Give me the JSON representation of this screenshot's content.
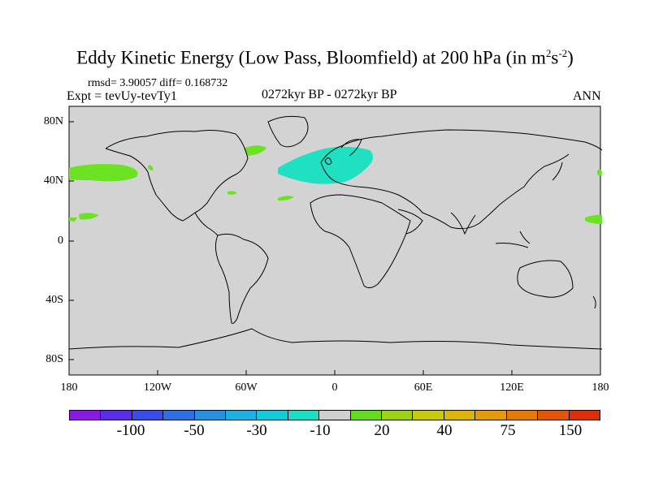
{
  "title_main": "Eddy Kinetic Energy (Low Pass, Bloomfield) at 200 hPa (in m",
  "title_sup1": "2",
  "title_mid": "s",
  "title_sup2": "-2",
  "title_end": ")",
  "stats": "rmsd= 3.90057 diff= 0.168732",
  "expt": "Expt = tevUy-tevTy1",
  "period": "0272kyr BP - 0272kyr BP",
  "season": "ANN",
  "lat_labels": [
    "80N",
    "40N",
    "0",
    "40S",
    "80S"
  ],
  "lon_labels": [
    "180",
    "120W",
    "60W",
    "0",
    "60E",
    "120E",
    "180"
  ],
  "colorbar": {
    "colors": [
      "#8a1ae0",
      "#5a2de6",
      "#3a4de8",
      "#2f6fe3",
      "#2a8fdc",
      "#21aee0",
      "#18c8d8",
      "#20dcc0",
      "#cfcfcf",
      "#66d924",
      "#9ed11a",
      "#c9c815",
      "#dcb412",
      "#e39a10",
      "#e37a0e",
      "#e0560d",
      "#d9300c"
    ],
    "labels": [
      "-100",
      "-50",
      "-30",
      "-10",
      "20",
      "40",
      "75",
      "150"
    ]
  },
  "legend_colors": {
    "land_ocean": "#d3d3d3",
    "positive": "#6be322",
    "negative": "#1fe0c0"
  }
}
